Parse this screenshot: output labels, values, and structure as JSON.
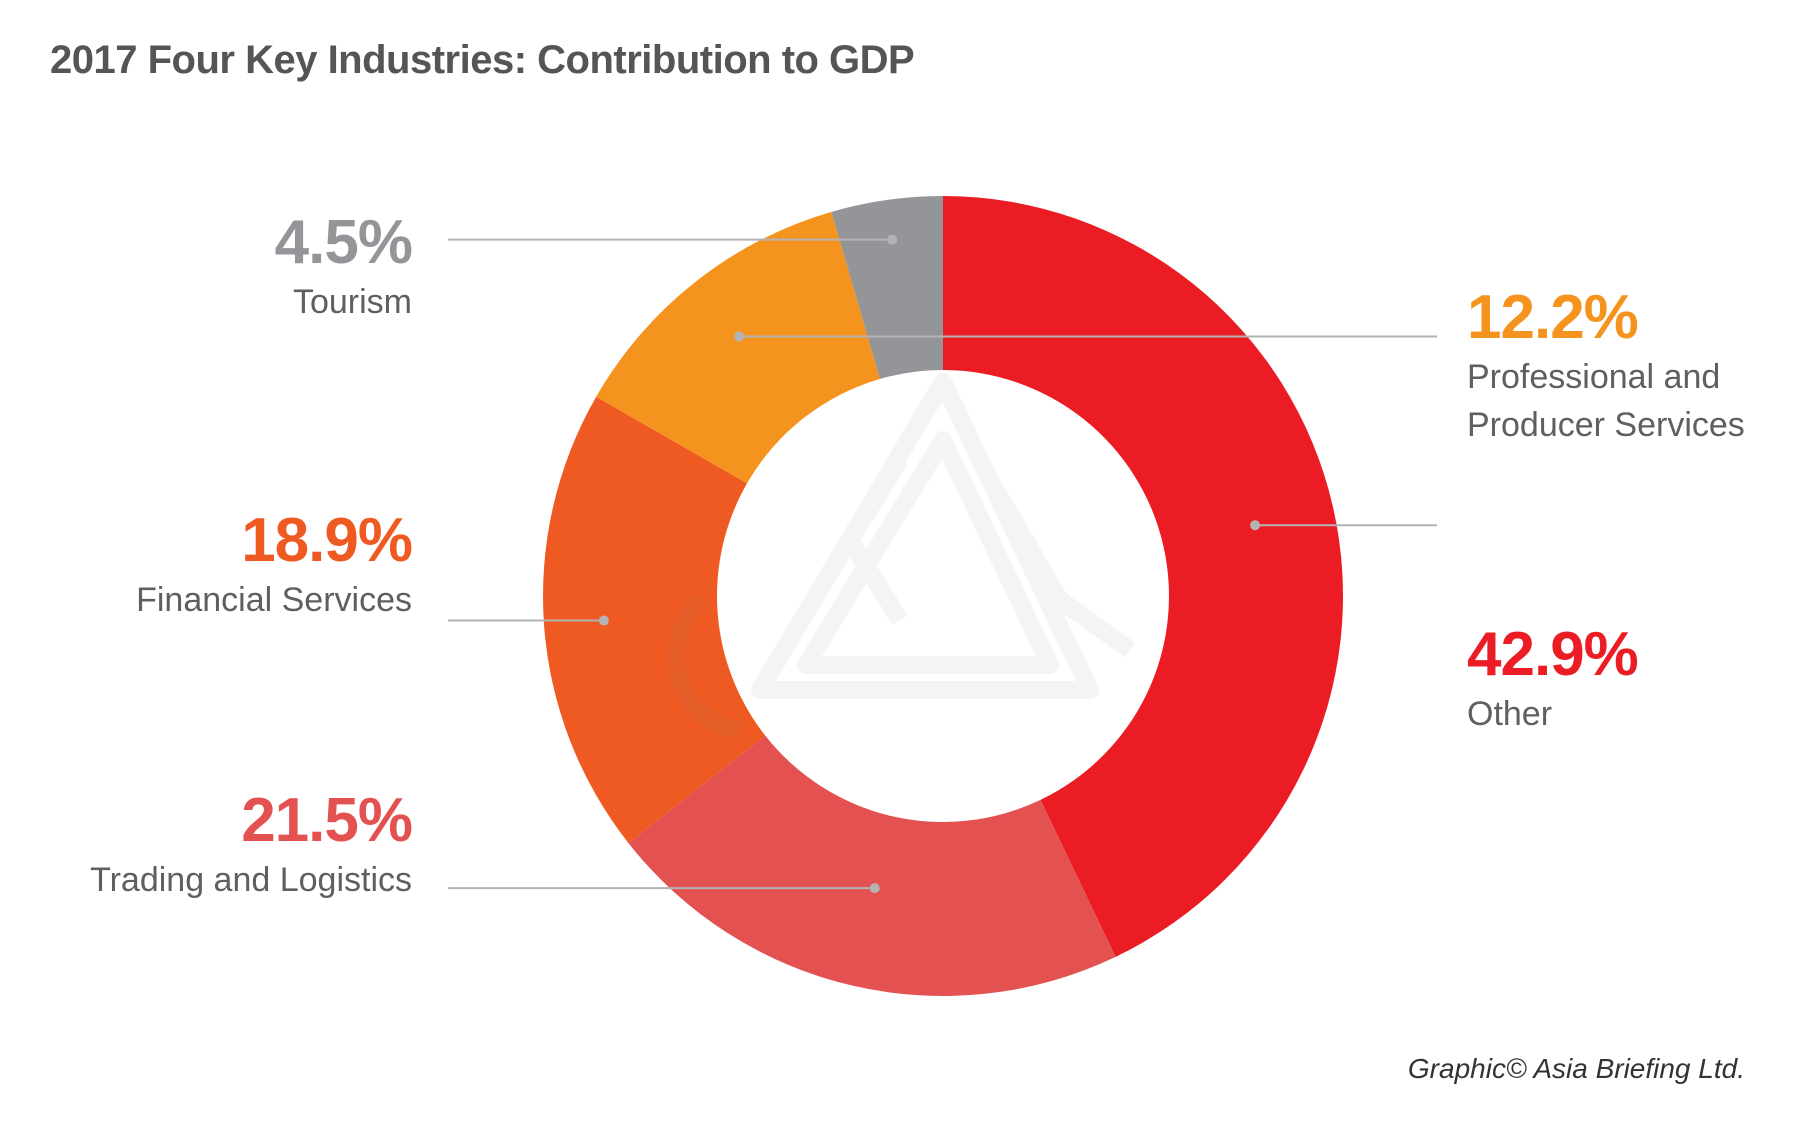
{
  "title": "2017 Four Key Industries: Contribution to GDP",
  "credit": "Graphic© Asia Briefing Ltd.",
  "colors": {
    "other": "#EC1C24",
    "trading": "#E35150",
    "financial": "#EE5A22",
    "professional": "#F5931F",
    "tourism": "#939598",
    "leader": "#b3b3b3"
  },
  "labels": {
    "tourism": {
      "pct": "4.5%",
      "name": "Tourism"
    },
    "professional": {
      "pct": "12.2%",
      "name_line1": "Professional and",
      "name_line2": "Producer Services"
    },
    "financial": {
      "pct": "18.9%",
      "name": "Financial Services"
    },
    "trading": {
      "pct": "21.5%",
      "name": "Trading and Logistics"
    },
    "other": {
      "pct": "42.9%",
      "name": "Other"
    }
  },
  "chart_data": {
    "type": "pie",
    "variant": "donut",
    "categories": [
      "Other",
      "Trading and Logistics",
      "Financial Services",
      "Professional and Producer Services",
      "Tourism"
    ],
    "values": [
      42.9,
      21.5,
      18.9,
      12.2,
      4.5
    ],
    "unit": "%",
    "direction": "clockwise from top"
  }
}
